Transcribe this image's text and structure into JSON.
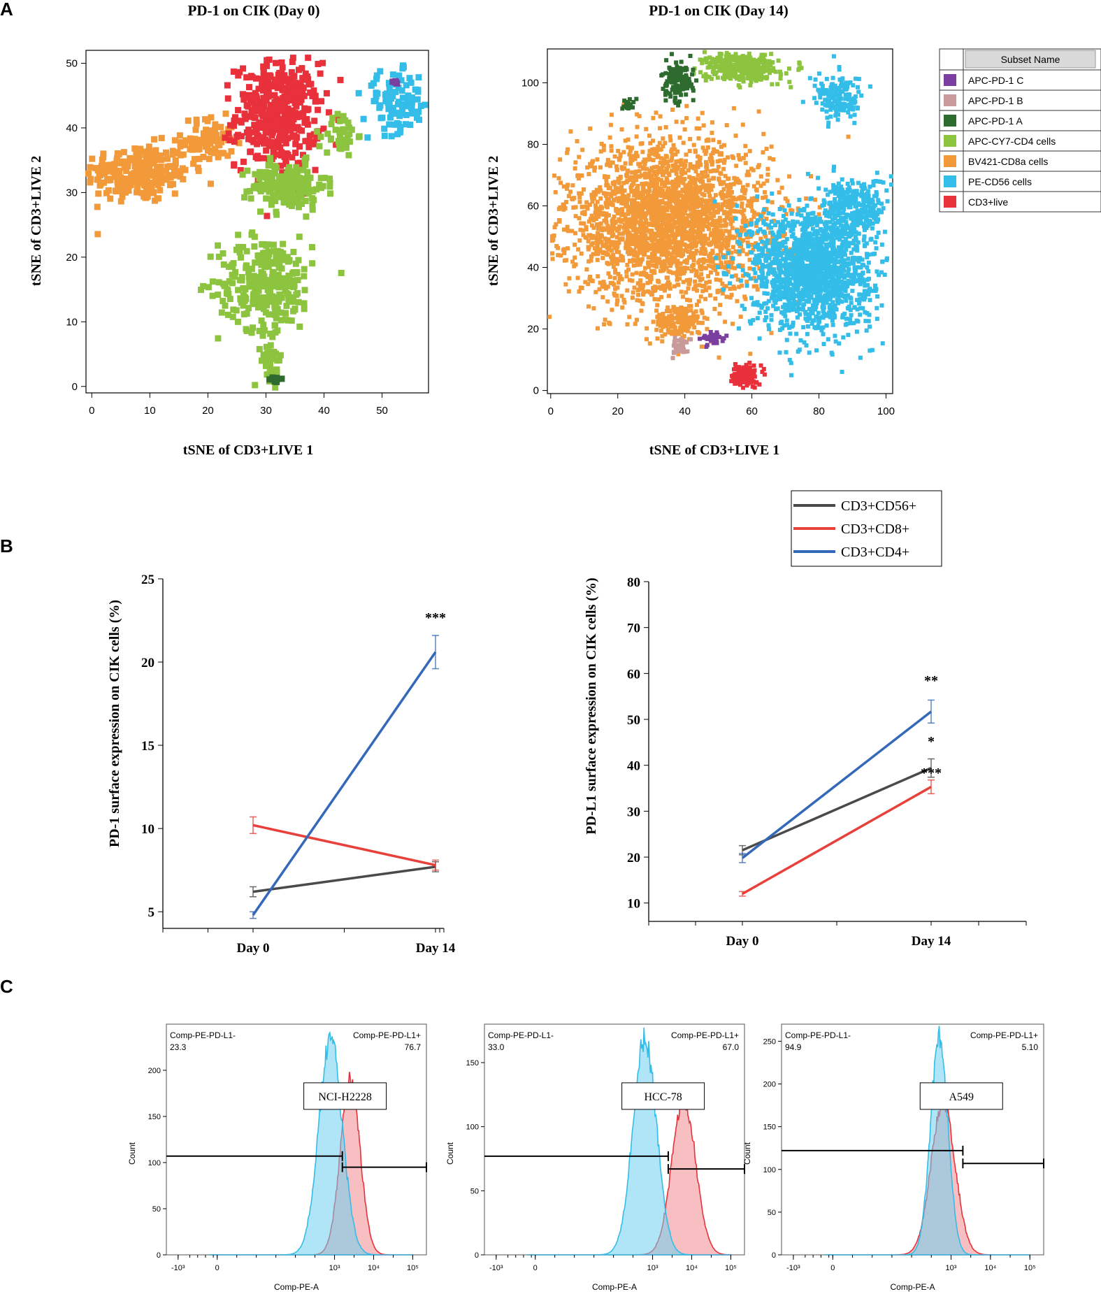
{
  "panel_labels": {
    "a": "A",
    "b": "B",
    "c": "C"
  },
  "chart_data": [
    {
      "type": "scatter",
      "title": "PD-1 on CIK (Day 0)",
      "xlabel": "tSNE of CD3+LIVE 1",
      "ylabel": "tSNE of CD3+LIVE 2",
      "xlim": [
        -1,
        58
      ],
      "ylim": [
        -1,
        52
      ],
      "xticks": [
        "0",
        "10",
        "20",
        "30",
        "40",
        "50"
      ],
      "yticks": [
        "0",
        "10",
        "20",
        "30",
        "40",
        "50"
      ],
      "clusters": [
        {
          "subset": "BV421-CD8a cells",
          "center": [
            8,
            33
          ],
          "spread": [
            10,
            5
          ],
          "count": 250
        },
        {
          "subset": "BV421-CD8a cells",
          "center": [
            20,
            38
          ],
          "spread": [
            5,
            4
          ],
          "count": 90
        },
        {
          "subset": "CD3+live",
          "center": [
            32,
            42
          ],
          "spread": [
            8,
            9
          ],
          "count": 420
        },
        {
          "subset": "APC-CY7-CD4 cells",
          "center": [
            34,
            31
          ],
          "spread": [
            7,
            4
          ],
          "count": 180
        },
        {
          "subset": "APC-CY7-CD4 cells",
          "center": [
            43,
            39
          ],
          "spread": [
            3,
            4
          ],
          "count": 40
        },
        {
          "subset": "APC-CY7-CD4 cells",
          "center": [
            30,
            16
          ],
          "spread": [
            9,
            8
          ],
          "count": 280
        },
        {
          "subset": "APC-CY7-CD4 cells",
          "center": [
            31,
            4
          ],
          "spread": [
            2,
            4
          ],
          "count": 40
        },
        {
          "subset": "PE-CD56 cells",
          "center": [
            53,
            44
          ],
          "spread": [
            7,
            5
          ],
          "count": 110
        },
        {
          "subset": "APC-PD-1 C",
          "center": [
            52,
            47
          ],
          "spread": [
            1,
            1
          ],
          "count": 5
        },
        {
          "subset": "APC-PD-1 A",
          "center": [
            31.5,
            1
          ],
          "spread": [
            1.5,
            0.6
          ],
          "count": 10
        }
      ]
    },
    {
      "type": "scatter",
      "title": "PD-1 on CIK (Day 14)",
      "xlabel": "tSNE of CD3+LIVE 1",
      "ylabel": "tSNE of CD3+LIVE 2",
      "xlim": [
        -1,
        102
      ],
      "ylim": [
        -1,
        111
      ],
      "xticks": [
        "0",
        "20",
        "40",
        "60",
        "80",
        "100"
      ],
      "yticks": [
        "0",
        "20",
        "40",
        "60",
        "80",
        "100"
      ],
      "clusters": [
        {
          "subset": "BV421-CD8a cells",
          "center": [
            35,
            55
          ],
          "spread": [
            33,
            28
          ],
          "count": 2600
        },
        {
          "subset": "BV421-CD8a cells",
          "center": [
            38,
            22
          ],
          "spread": [
            8,
            6
          ],
          "count": 150
        },
        {
          "subset": "PE-CD56 cells",
          "center": [
            78,
            40
          ],
          "spread": [
            20,
            22
          ],
          "count": 1600
        },
        {
          "subset": "PE-CD56 cells",
          "center": [
            91,
            60
          ],
          "spread": [
            10,
            10
          ],
          "count": 250
        },
        {
          "subset": "PE-CD56 cells",
          "center": [
            86,
            95
          ],
          "spread": [
            8,
            8
          ],
          "count": 160
        },
        {
          "subset": "APC-CY7-CD4 cells",
          "center": [
            57,
            105
          ],
          "spread": [
            12,
            5
          ],
          "count": 400
        },
        {
          "subset": "APC-PD-1 A",
          "center": [
            38,
            100
          ],
          "spread": [
            5,
            7
          ],
          "count": 140
        },
        {
          "subset": "APC-PD-1 A",
          "center": [
            23,
            93
          ],
          "spread": [
            2,
            2
          ],
          "count": 20
        },
        {
          "subset": "APC-PD-1 C",
          "center": [
            48,
            17
          ],
          "spread": [
            4,
            2
          ],
          "count": 40
        },
        {
          "subset": "APC-PD-1 B",
          "center": [
            39,
            14
          ],
          "spread": [
            3,
            3
          ],
          "count": 40
        },
        {
          "subset": "CD3+live",
          "center": [
            58,
            5
          ],
          "spread": [
            4,
            4
          ],
          "count": 120
        }
      ]
    },
    {
      "type": "line",
      "xlabel": "",
      "ylabel": "PD-1 surface expression on CIK cells (%)",
      "categories": [
        "Day 0",
        "Day 14"
      ],
      "ylim": [
        4,
        25
      ],
      "yticks": [
        "5",
        "10",
        "15",
        "20",
        "25"
      ],
      "series": [
        {
          "name": "CD3+CD56+",
          "color": "#4a4a4a",
          "values": [
            6.2,
            7.7
          ],
          "errors": [
            0.3,
            0.3
          ]
        },
        {
          "name": "CD3+CD8+",
          "color": "#e8403a",
          "values": [
            10.2,
            7.8
          ],
          "errors": [
            0.5,
            0.3
          ]
        },
        {
          "name": "CD3+CD4+",
          "color": "#3468b8",
          "values": [
            4.8,
            20.6
          ],
          "errors": [
            0.2,
            1.0
          ]
        }
      ],
      "annotations": [
        {
          "text": "***",
          "category": "Day 14",
          "y": 22.4
        }
      ]
    },
    {
      "type": "line",
      "xlabel": "",
      "ylabel": "PD-L1 surface expression on CIK cells (%)",
      "categories": [
        "Day 0",
        "Day 14"
      ],
      "ylim": [
        6,
        80
      ],
      "yticks": [
        "10",
        "20",
        "30",
        "40",
        "50",
        "60",
        "70",
        "80"
      ],
      "series": [
        {
          "name": "CD3+CD56+",
          "color": "#4a4a4a",
          "values": [
            21.5,
            39.4
          ],
          "errors": [
            1.0,
            2.0
          ]
        },
        {
          "name": "CD3+CD8+",
          "color": "#e8403a",
          "values": [
            12.0,
            35.3
          ],
          "errors": [
            0.5,
            1.5
          ]
        },
        {
          "name": "CD3+CD4+",
          "color": "#3468b8",
          "values": [
            19.8,
            51.7
          ],
          "errors": [
            1.0,
            2.5
          ]
        }
      ],
      "annotations": [
        {
          "text": "**",
          "category": "Day 14",
          "y": 57.5
        },
        {
          "text": "*",
          "category": "Day 14",
          "y": 44.2
        },
        {
          "text": "***",
          "category": "Day 14",
          "y": 37.4
        }
      ]
    },
    {
      "type": "area",
      "label": "NCI-H2228",
      "xlabel": "Comp-PE-A",
      "ylabel": "Count",
      "ylim": [
        0,
        250
      ],
      "yticks": [
        "0",
        "50",
        "100",
        "150",
        "200"
      ],
      "xticks": [
        "-10³",
        "0",
        "10³",
        "10⁴",
        "10⁵"
      ],
      "gate_neg": {
        "name": "Comp-PE-PD-L1-",
        "value": "23.3"
      },
      "gate_pos": {
        "name": "Comp-PE-PD-L1+",
        "value": "76.7"
      },
      "gate_split_log": 3.2,
      "neg_y": 107,
      "pos_y": 95,
      "blue": {
        "peak_log": 2.9,
        "width": 0.3,
        "height": 232
      },
      "red": {
        "peak_log": 3.4,
        "width": 0.25,
        "height": 190
      }
    },
    {
      "type": "area",
      "label": "HCC-78",
      "xlabel": "Comp-PE-A",
      "ylabel": "Count",
      "ylim": [
        0,
        180
      ],
      "yticks": [
        "0",
        "50",
        "100",
        "150"
      ],
      "xticks": [
        "-10³",
        "0",
        "10³",
        "10⁴",
        "10⁵"
      ],
      "gate_neg": {
        "name": "Comp-PE-PD-L1-",
        "value": "33.0"
      },
      "gate_pos": {
        "name": "Comp-PE-PD-L1+",
        "value": "67.0"
      },
      "gate_split_log": 3.4,
      "neg_y": 77,
      "pos_y": 67,
      "blue": {
        "peak_log": 2.8,
        "width": 0.3,
        "height": 168
      },
      "red": {
        "peak_log": 3.8,
        "width": 0.3,
        "height": 122
      }
    },
    {
      "type": "area",
      "label": "A549",
      "xlabel": "Comp-PE-A",
      "ylabel": "Count",
      "ylim": [
        0,
        270
      ],
      "yticks": [
        "0",
        "50",
        "100",
        "150",
        "200",
        "250"
      ],
      "xticks": [
        "-10³",
        "0",
        "10³",
        "10⁴",
        "10⁵"
      ],
      "gate_neg": {
        "name": "Comp-PE-PD-L1-",
        "value": "94.9"
      },
      "gate_pos": {
        "name": "Comp-PE-PD-L1+",
        "value": "5.10"
      },
      "gate_split_log": 3.3,
      "neg_y": 122,
      "pos_y": 107,
      "blue": {
        "peak_log": 2.7,
        "width": 0.22,
        "height": 255
      },
      "red": {
        "peak_log": 2.8,
        "width": 0.3,
        "height": 180
      }
    }
  ],
  "subset_legend": {
    "header": "Subset Name",
    "items": [
      {
        "label": "APC-PD-1 C",
        "color": "#7b3fa0"
      },
      {
        "label": "APC-PD-1 B",
        "color": "#c99a9a"
      },
      {
        "label": "APC-PD-1 A",
        "color": "#2e6b2e"
      },
      {
        "label": "APC-CY7-CD4 cells",
        "color": "#8cc43f"
      },
      {
        "label": "BV421-CD8a cells",
        "color": "#f29a3a"
      },
      {
        "label": "PE-CD56 cells",
        "color": "#33bde8"
      },
      {
        "label": "CD3+live",
        "color": "#e8313b"
      }
    ]
  },
  "line_legend": {
    "items": [
      {
        "label": "CD3+CD56+",
        "color": "#4a4a4a"
      },
      {
        "label": "CD3+CD8+",
        "color": "#e8403a"
      },
      {
        "label": "CD3+CD4+",
        "color": "#3468b8"
      }
    ]
  }
}
